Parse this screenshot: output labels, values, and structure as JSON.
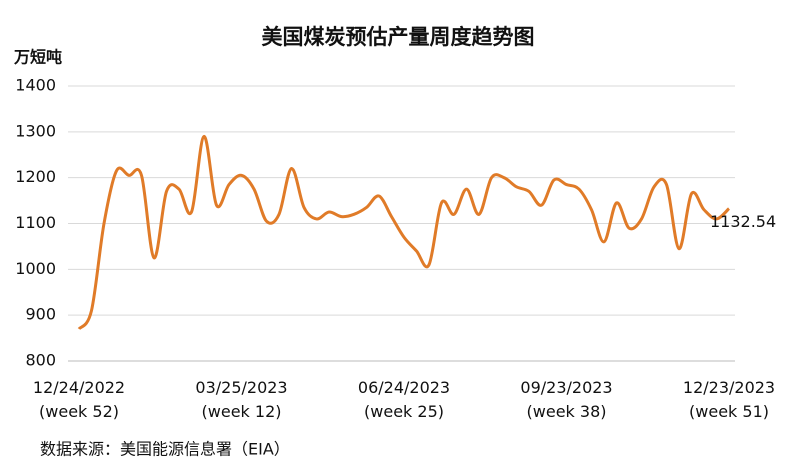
{
  "chart_data": {
    "type": "line",
    "title": "美国煤炭预估产量周度趋势图",
    "y_axis_label": "万短吨",
    "source": "数据来源：美国能源信息署（EIA）",
    "categories": [
      "12/24/2022\n(week 52)",
      null,
      null,
      null,
      null,
      null,
      null,
      null,
      null,
      null,
      null,
      null,
      null,
      "03/25/2023\n(week 12)",
      null,
      null,
      null,
      null,
      null,
      null,
      null,
      null,
      null,
      null,
      null,
      null,
      "06/24/2023\n(week 25)",
      null,
      null,
      null,
      null,
      null,
      null,
      null,
      null,
      null,
      null,
      null,
      null,
      "09/23/2023\n(week 38)",
      null,
      null,
      null,
      null,
      null,
      null,
      null,
      null,
      null,
      null,
      null,
      null,
      "12/23/2023\n(week 51)"
    ],
    "series": [
      {
        "name": "美国煤炭预估产量",
        "color": "#e07b28",
        "values": [
          870,
          910,
          1100,
          1215,
          1205,
          1205,
          1025,
          1170,
          1175,
          1125,
          1290,
          1140,
          1185,
          1205,
          1175,
          1105,
          1120,
          1220,
          1135,
          1110,
          1125,
          1115,
          1120,
          1135,
          1160,
          1115,
          1070,
          1040,
          1010,
          1145,
          1120,
          1175,
          1120,
          1200,
          1200,
          1180,
          1170,
          1140,
          1195,
          1185,
          1175,
          1130,
          1060,
          1145,
          1090,
          1110,
          1180,
          1185,
          1045,
          1165,
          1130,
          1110,
          1132.54
        ]
      }
    ],
    "ylim": [
      800,
      1400
    ],
    "yticks": [
      800,
      900,
      1000,
      1100,
      1200,
      1300,
      1400
    ],
    "grid": true
  }
}
